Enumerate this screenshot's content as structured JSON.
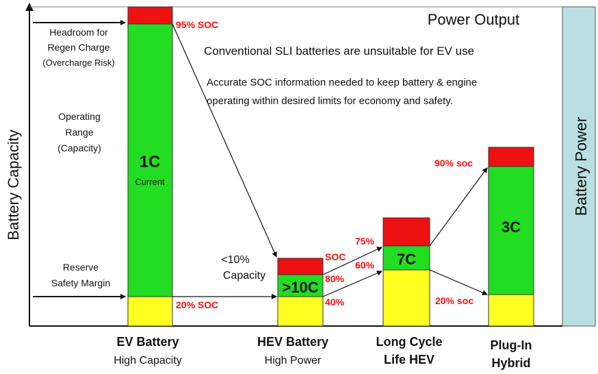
{
  "header": {
    "title": "Power Output",
    "note1": "Conventional SLI batteries are unsuitable for EV use",
    "note2_line1": "Accurate SOC information needed to keep battery & engine",
    "note2_line2": "operating within desired limits for economy and safety."
  },
  "axes": {
    "y_label": "Battery Capacity",
    "right_label": "Battery Power"
  },
  "left_labels": {
    "headroom": [
      "Headroom for",
      "Regen Charge",
      "(Overcharge Risk)"
    ],
    "operating": [
      "Operating",
      "Range",
      "(Capacity)"
    ],
    "reserve": [
      "Reserve",
      "Safety Margin"
    ]
  },
  "bars": [
    {
      "name": "ev-battery",
      "x_label_line1": "EV Battery",
      "x_label_line2": "High Capacity",
      "rate": "1C",
      "rate_sub": "Current",
      "soc_high": "95% SOC",
      "soc_low": "20% SOC"
    },
    {
      "name": "hev-battery",
      "x_label_line1": "HEV Battery",
      "x_label_line2": "High Power",
      "rate": ">10C",
      "side_note_line1": "<10%",
      "side_note_line2": "Capacity",
      "soc_top": "SOC",
      "soc_high": "80%",
      "soc_low": "40%"
    },
    {
      "name": "long-cycle-hev",
      "x_label_line1": "Long Cycle",
      "x_label_line2": "Life HEV",
      "rate": "7C",
      "soc_high": "75%",
      "soc_low": "60%"
    },
    {
      "name": "plug-in-hybrid",
      "x_label_line1": "Plug-In",
      "x_label_line2": "Hybrid",
      "rate": "3C",
      "soc_high": "90% soc",
      "soc_low": "20% soc"
    }
  ],
  "colors": {
    "red": "#ee1111",
    "green": "#22dd22",
    "yellow": "#ffff22",
    "soc_text": "#ee1111",
    "power_panel": "#b9dfe2"
  }
}
